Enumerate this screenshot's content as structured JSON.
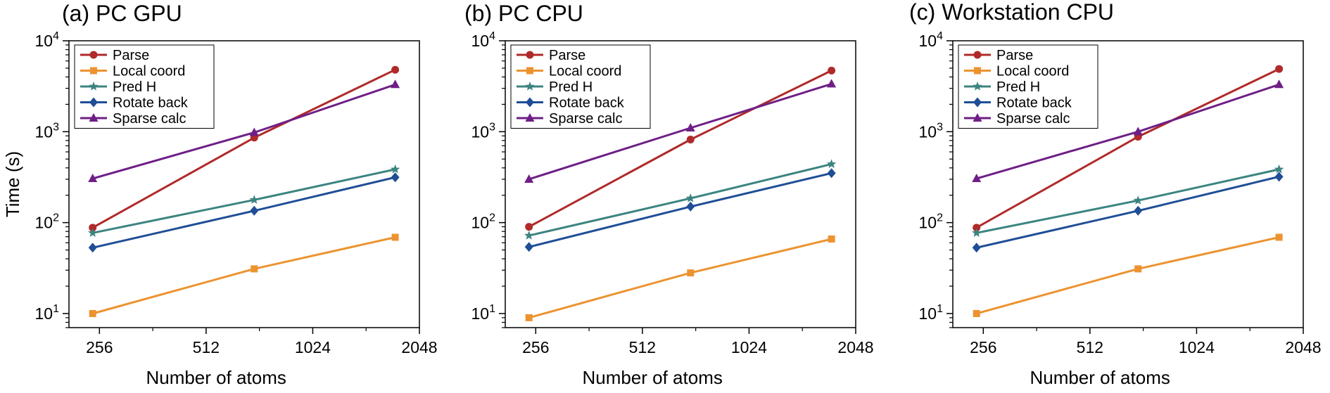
{
  "chart_data": [
    {
      "type": "line",
      "title": "(a) PC GPU",
      "xlabel": "Number of atoms",
      "ylabel": "Time (s)",
      "xscale": "log2",
      "yscale": "log10",
      "xlim": [
        210,
        2048
      ],
      "ylim": [
        7,
        10000
      ],
      "xticks": [
        256,
        512,
        1024,
        2048
      ],
      "xtick_labels": [
        "256",
        "512",
        "1024",
        "2048"
      ],
      "yticks": [
        10,
        100,
        1000,
        10000
      ],
      "ytick_exponents": [
        "1",
        "2",
        "3",
        "4"
      ],
      "x": [
        245,
        700,
        1750
      ],
      "legend_position": "top-left",
      "series": [
        {
          "name": "Parse",
          "color": "#b02a2a",
          "marker": "circle",
          "values": [
            88,
            860,
            4800
          ]
        },
        {
          "name": "Local coord",
          "color": "#ec9330",
          "marker": "square",
          "values": [
            10,
            31,
            69
          ]
        },
        {
          "name": "Pred H",
          "color": "#3c8481",
          "marker": "star",
          "values": [
            77,
            178,
            385
          ]
        },
        {
          "name": "Rotate back",
          "color": "#1f4e96",
          "marker": "diamond",
          "values": [
            53,
            135,
            315
          ]
        },
        {
          "name": "Sparse calc",
          "color": "#6e1f86",
          "marker": "triangle",
          "values": [
            305,
            980,
            3300
          ]
        }
      ]
    },
    {
      "type": "line",
      "title": "(b) PC CPU",
      "xlabel": "Number of atoms",
      "ylabel": "",
      "xscale": "log2",
      "yscale": "log10",
      "xlim": [
        210,
        2048
      ],
      "ylim": [
        7,
        10000
      ],
      "xticks": [
        256,
        512,
        1024,
        2048
      ],
      "xtick_labels": [
        "256",
        "512",
        "1024",
        "2048"
      ],
      "yticks": [
        10,
        100,
        1000,
        10000
      ],
      "ytick_exponents": [
        "1",
        "2",
        "3",
        "4"
      ],
      "x": [
        245,
        700,
        1750
      ],
      "legend_position": "top-left",
      "series": [
        {
          "name": "Parse",
          "color": "#b02a2a",
          "marker": "circle",
          "values": [
            90,
            820,
            4700
          ]
        },
        {
          "name": "Local coord",
          "color": "#ec9330",
          "marker": "square",
          "values": [
            9,
            28,
            66
          ]
        },
        {
          "name": "Pred H",
          "color": "#3c8481",
          "marker": "star",
          "values": [
            72,
            185,
            440
          ]
        },
        {
          "name": "Rotate back",
          "color": "#1f4e96",
          "marker": "diamond",
          "values": [
            54,
            150,
            350
          ]
        },
        {
          "name": "Sparse calc",
          "color": "#6e1f86",
          "marker": "triangle",
          "values": [
            300,
            1100,
            3350
          ]
        }
      ]
    },
    {
      "type": "line",
      "title": "(c) Workstation CPU",
      "xlabel": "Number of atoms",
      "ylabel": "",
      "xscale": "log2",
      "yscale": "log10",
      "xlim": [
        210,
        2048
      ],
      "ylim": [
        7,
        10000
      ],
      "xticks": [
        256,
        512,
        1024,
        2048
      ],
      "xtick_labels": [
        "256",
        "512",
        "1024",
        "2048"
      ],
      "yticks": [
        10,
        100,
        1000,
        10000
      ],
      "ytick_exponents": [
        "1",
        "2",
        "3",
        "4"
      ],
      "x": [
        245,
        700,
        1750
      ],
      "legend_position": "top-left",
      "series": [
        {
          "name": "Parse",
          "color": "#b02a2a",
          "marker": "circle",
          "values": [
            88,
            880,
            4900
          ]
        },
        {
          "name": "Local coord",
          "color": "#ec9330",
          "marker": "square",
          "values": [
            10,
            31,
            69
          ]
        },
        {
          "name": "Pred H",
          "color": "#3c8481",
          "marker": "star",
          "values": [
            77,
            175,
            385
          ]
        },
        {
          "name": "Rotate back",
          "color": "#1f4e96",
          "marker": "diamond",
          "values": [
            53,
            135,
            320
          ]
        },
        {
          "name": "Sparse calc",
          "color": "#6e1f86",
          "marker": "triangle",
          "values": [
            305,
            1000,
            3300
          ]
        }
      ]
    }
  ]
}
